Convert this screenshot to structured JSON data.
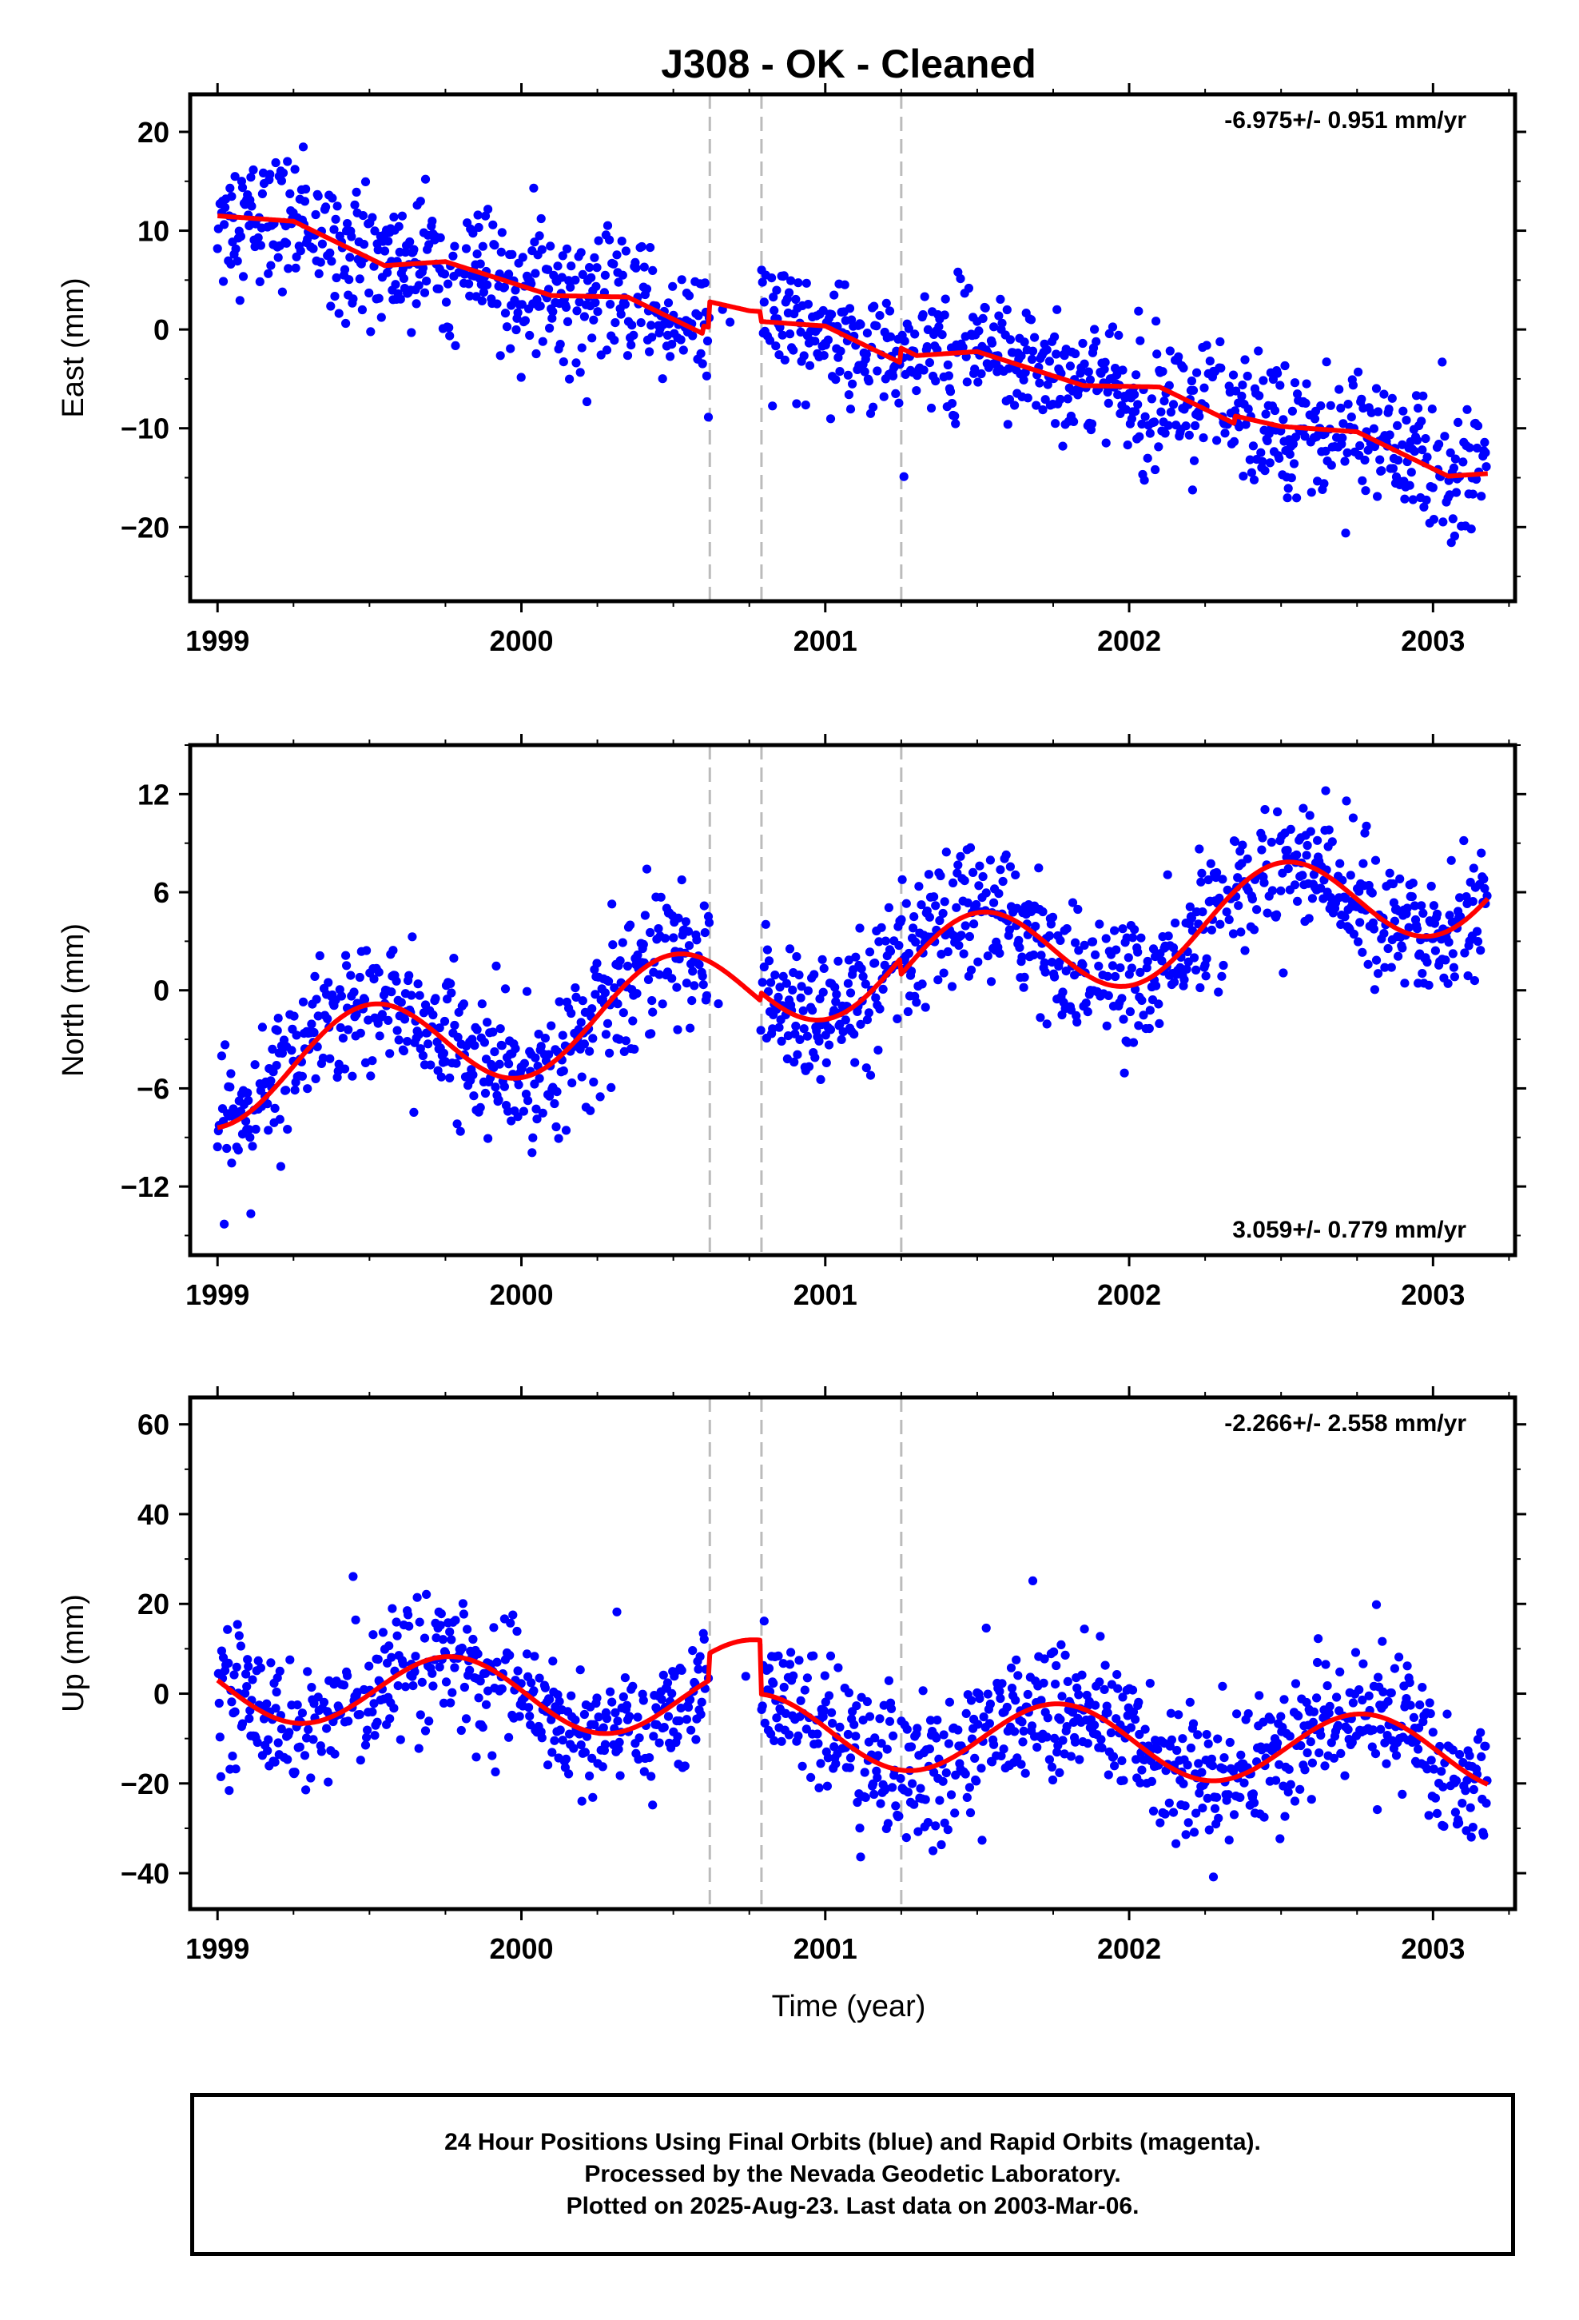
{
  "chart_data": {
    "type": "scatter",
    "title": "J308  - OK - Cleaned",
    "xlabel": "Time (year)",
    "xlim": [
      1998.91,
      2003.27
    ],
    "x_ticks": [
      1999,
      2000,
      2001,
      2002,
      2003
    ],
    "x_tick_labels": [
      "1999",
      "2000",
      "2001",
      "2002",
      "2003"
    ],
    "discontinuities": [
      2000.62,
      2000.79,
      2001.25
    ],
    "last_data": 2003.18,
    "colors": {
      "points": "#0000ff",
      "fit": "#ff0000",
      "breaks": "#bbbbbb",
      "frame": "#000000"
    },
    "panels": [
      {
        "name": "East",
        "ylabel": "East (mm)",
        "ylim": [
          -27.5,
          23.8
        ],
        "yticks": [
          20,
          10,
          0,
          -10,
          -20
        ],
        "ytick_labels": [
          "20",
          "10",
          "0",
          "−10",
          "−20"
        ],
        "rate": "-6.975+/- 0.951 mm/yr",
        "rate_position": "top-right",
        "trend": -6.975,
        "start_value": 11.5,
        "noise": 3.2,
        "seasonal": [
          {
            "t": 1999.0,
            "v": 0
          },
          {
            "t": 1999.25,
            "v": 1.2
          },
          {
            "t": 1999.55,
            "v": -1.2
          },
          {
            "t": 1999.75,
            "v": 0.6
          },
          {
            "t": 2000.1,
            "v": -0.4
          },
          {
            "t": 2000.35,
            "v": 1.2
          },
          {
            "t": 2000.6,
            "v": -0.8
          }
        ],
        "offsets": [
          {
            "t": 2000.62,
            "v": 2.6
          },
          {
            "t": 2000.79,
            "v": -1.0
          },
          {
            "t": 2001.25,
            "v": 1.5
          }
        ]
      },
      {
        "name": "North",
        "ylabel": "North (mm)",
        "ylim": [
          -16.2,
          15.0
        ],
        "yticks": [
          12,
          6,
          0,
          -6,
          -12
        ],
        "ytick_labels": [
          "12",
          "6",
          "0",
          "−6",
          "−12"
        ],
        "rate": "3.059+/- 0.779 mm/yr",
        "rate_position": "bottom-right",
        "trend": 3.059,
        "start_value": -5.4,
        "noise": 2.0,
        "seasonal_amp": 3.0,
        "seasonal_phase": 1999.0,
        "offsets": [
          {
            "t": 2000.62,
            "v": 0.0
          },
          {
            "t": 2000.79,
            "v": 0.5
          },
          {
            "t": 2001.25,
            "v": -1.0
          }
        ]
      },
      {
        "name": "Up",
        "ylabel": "Up (mm)",
        "ylim": [
          -48,
          66
        ],
        "yticks": [
          60,
          40,
          20,
          0,
          -20,
          -40
        ],
        "ytick_labels": [
          "60",
          "40",
          "20",
          "0",
          "−20",
          "−40"
        ],
        "rate": "-2.266+/- 2.558 mm/yr",
        "rate_position": "top-right",
        "trend": -2.266,
        "start_value": 2.0,
        "noise": 7.5,
        "seasonal_amp": 8.0,
        "seasonal_phase": 1999.27,
        "offsets": [
          {
            "t": 2000.62,
            "v": 6.0
          },
          {
            "t": 2000.79,
            "v": -12.0
          },
          {
            "t": 2001.25,
            "v": 0.0
          }
        ]
      }
    ],
    "footer": [
      "24 Hour Positions Using Final Orbits (blue) and Rapid Orbits (magenta).",
      "Processed by the Nevada Geodetic Laboratory.",
      "Plotted on 2025-Aug-23. Last data on 2003-Mar-06."
    ]
  }
}
